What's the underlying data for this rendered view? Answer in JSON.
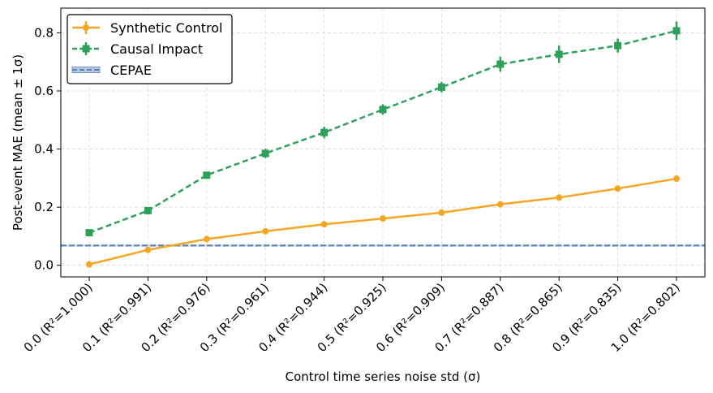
{
  "chart_data": {
    "type": "line",
    "xlabel": "Control time series noise std (σ)",
    "ylabel": "Post-event MAE (mean ± 1σ)",
    "ylim": [
      -0.04,
      0.885
    ],
    "y_ticks": [
      0.0,
      0.2,
      0.4,
      0.6,
      0.8
    ],
    "y_tick_labels": [
      "0.0",
      "0.2",
      "0.4",
      "0.6",
      "0.8"
    ],
    "categories": [
      "0.0 (R²=1.000)",
      "0.1 (R²=0.991)",
      "0.2 (R²=0.976)",
      "0.3 (R²=0.961)",
      "0.4 (R²=0.944)",
      "0.5 (R²=0.925)",
      "0.6 (R²=0.909)",
      "0.7 (R²=0.887)",
      "0.8 (R²=0.865)",
      "0.9 (R²=0.835)",
      "1.0 (R²=0.802)"
    ],
    "grid": true,
    "legend_position": "top-left",
    "series": [
      {
        "name": "Synthetic Control",
        "color": "#f5a623",
        "style": "solid",
        "marker": "circle",
        "values": [
          0.003,
          0.053,
          0.09,
          0.117,
          0.141,
          0.161,
          0.181,
          0.21,
          0.233,
          0.264,
          0.298
        ],
        "errors": [
          0.003,
          0.004,
          0.004,
          0.004,
          0.004,
          0.004,
          0.004,
          0.004,
          0.004,
          0.005,
          0.005
        ]
      },
      {
        "name": "Causal Impact",
        "color": "#2ea05a",
        "style": "dashed",
        "marker": "square",
        "values": [
          0.112,
          0.188,
          0.31,
          0.385,
          0.457,
          0.536,
          0.613,
          0.692,
          0.726,
          0.756,
          0.807
        ],
        "errors": [
          0.008,
          0.012,
          0.012,
          0.016,
          0.02,
          0.018,
          0.018,
          0.026,
          0.03,
          0.024,
          0.032
        ]
      }
    ],
    "reference_lines": [
      {
        "name": "CEPAE",
        "color": "#5b7fb0",
        "band_color": "#b7c9e2",
        "style": "dashed",
        "value": 0.068,
        "band": [
          0.064,
          0.072
        ]
      }
    ]
  }
}
